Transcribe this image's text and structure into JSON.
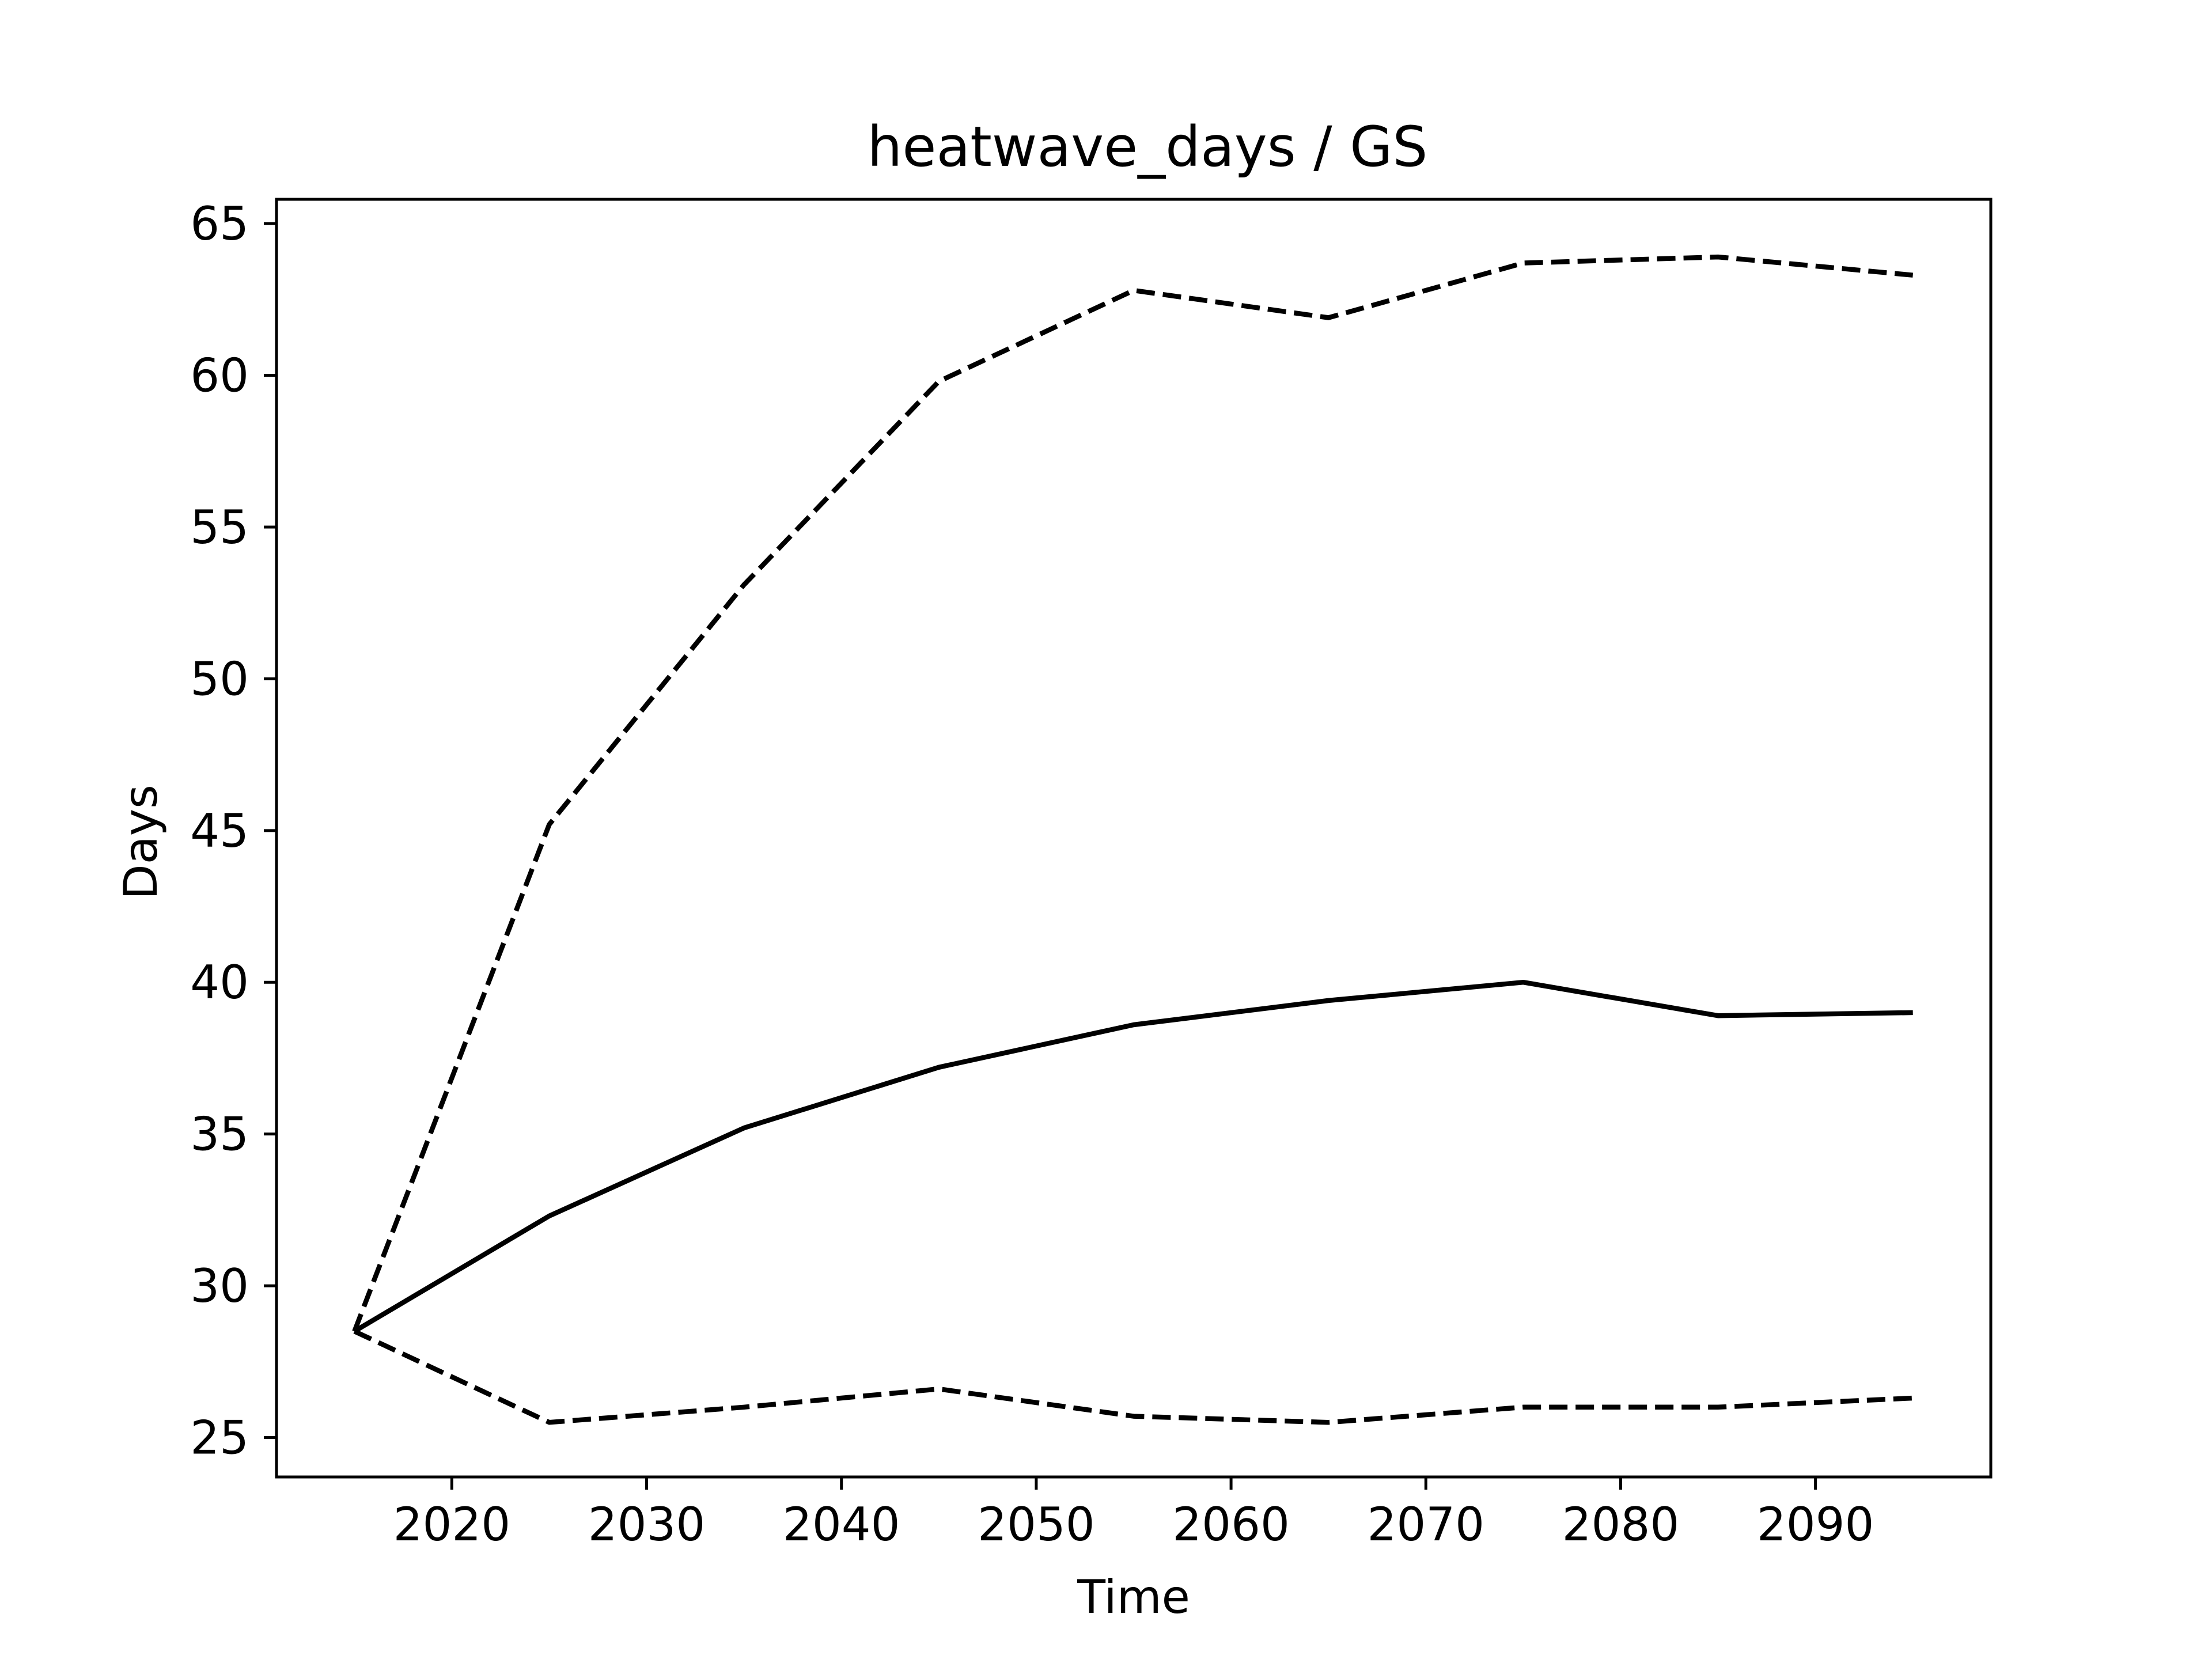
{
  "chart_data": {
    "type": "line",
    "title": "heatwave_days / GS",
    "xlabel": "Time",
    "ylabel": "Days",
    "xlim": [
      2011,
      2099
    ],
    "ylim": [
      23.7,
      65.8
    ],
    "xticks": [
      2020,
      2030,
      2040,
      2050,
      2060,
      2070,
      2080,
      2090
    ],
    "yticks": [
      25,
      30,
      35,
      40,
      45,
      50,
      55,
      60,
      65
    ],
    "grid": false,
    "legend": null,
    "x": [
      2015,
      2025,
      2035,
      2045,
      2055,
      2065,
      2075,
      2085,
      2095
    ],
    "series": [
      {
        "style": "dashed",
        "color": "#000000",
        "values": [
          28.5,
          45.2,
          53.1,
          59.8,
          62.8,
          61.9,
          63.7,
          63.9,
          63.3
        ]
      },
      {
        "style": "solid",
        "color": "#000000",
        "values": [
          28.5,
          32.3,
          35.2,
          37.2,
          38.6,
          39.4,
          40.0,
          38.9,
          39.0
        ]
      },
      {
        "style": "dashed",
        "color": "#000000",
        "values": [
          28.5,
          25.5,
          26.0,
          26.6,
          25.7,
          25.5,
          26.0,
          26.0,
          26.3
        ]
      }
    ]
  }
}
